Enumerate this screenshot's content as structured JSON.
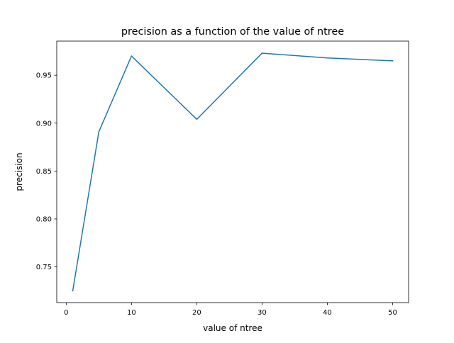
{
  "chart_data": {
    "type": "line",
    "title": "precision as a function of the value of ntree",
    "xlabel": "value of ntree",
    "ylabel": "precision",
    "x": [
      1,
      5,
      10,
      20,
      30,
      40,
      50
    ],
    "series": [
      {
        "values": [
          0.725,
          0.891,
          0.97,
          0.904,
          0.973,
          0.968,
          0.965
        ],
        "color": "#1f77b4"
      }
    ],
    "xlim": [
      -1.45,
      52.45
    ],
    "ylim": [
      0.7127,
      0.9856
    ],
    "xticks": [
      0,
      10,
      20,
      30,
      40,
      50
    ],
    "xtick_labels": [
      "0",
      "10",
      "20",
      "30",
      "40",
      "50"
    ],
    "yticks": [
      0.75,
      0.8,
      0.85,
      0.9,
      0.95
    ],
    "ytick_labels": [
      "0.75",
      "0.80",
      "0.85",
      "0.90",
      "0.95"
    ],
    "grid": false,
    "legend": false
  }
}
